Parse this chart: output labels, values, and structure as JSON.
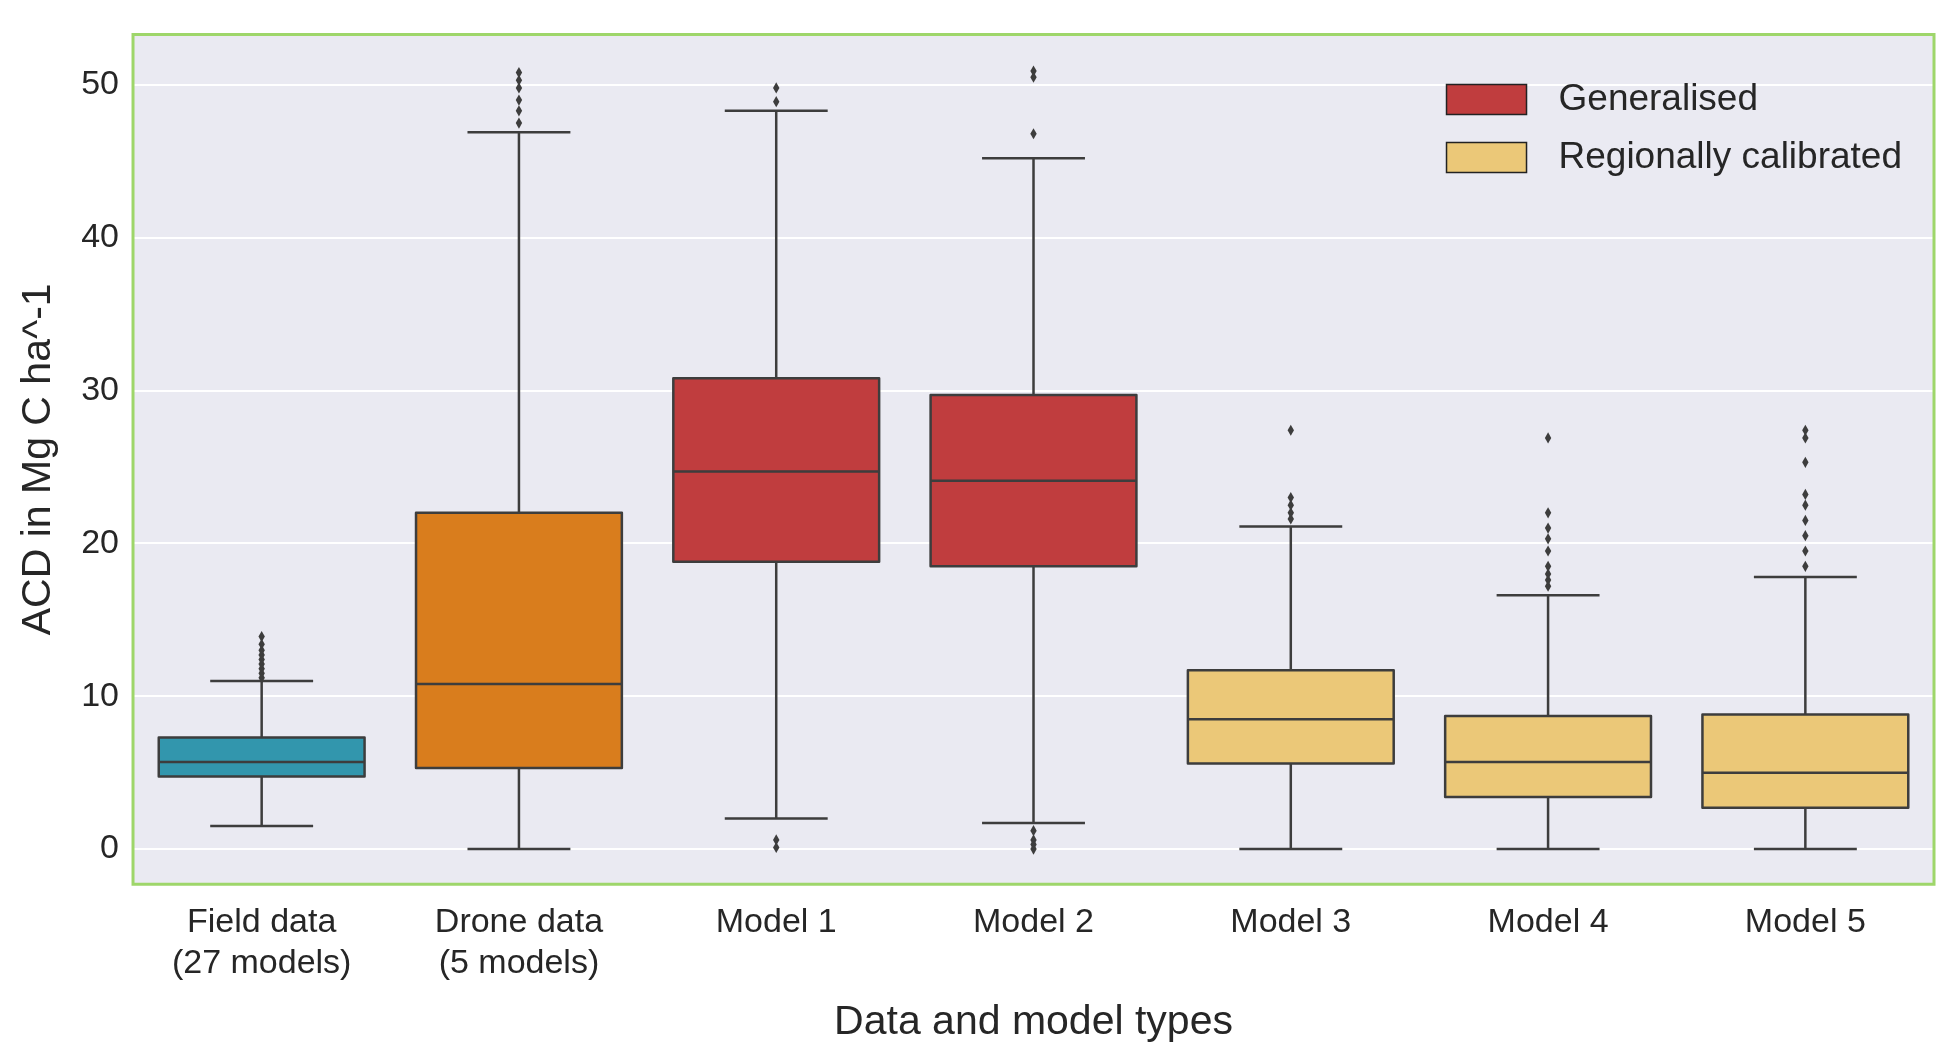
{
  "chart_data": {
    "type": "box",
    "xlabel": "Data and model types",
    "ylabel": "ACD in Mg C ha^-1",
    "categories": [
      "Field data\n(27 models)",
      "Drone data\n(5 models)",
      "Model 1",
      "Model 2",
      "Model 3",
      "Model 4",
      "Model 5"
    ],
    "ylim": [
      -2.3,
      53.3
    ],
    "yticks": [
      0,
      10,
      20,
      30,
      40,
      50
    ],
    "grid": "y",
    "legend": "top right",
    "marker": "diamond",
    "series": [
      {
        "color": "#3296ad",
        "boxes": [
          {
            "low": 1.5,
            "q1": 4.75,
            "median": 5.7,
            "q3": 7.3,
            "high": 11.0,
            "outliers": [
              11.2,
              11.5,
              11.8,
              12.1,
              12.4,
              12.7,
              13.0,
              13.4,
              13.9
            ]
          },
          null,
          null,
          null,
          null,
          null,
          null
        ]
      },
      {
        "color": "#d97d1d",
        "boxes": [
          null,
          {
            "low": 0,
            "q1": 5.3,
            "median": 10.8,
            "q3": 22.0,
            "high": 46.9,
            "outliers": [
              47.5,
              48.3,
              49.0,
              49.8,
              50.3,
              50.8
            ]
          },
          null,
          null,
          null,
          null,
          null
        ]
      },
      {
        "name": "Generalised",
        "color": "#c03d3e",
        "boxes": [
          null,
          null,
          {
            "low": 2.0,
            "q1": 18.8,
            "median": 24.7,
            "q3": 30.8,
            "high": 48.3,
            "outliers": [
              48.9,
              49.8,
              0.6,
              0.1
            ]
          },
          {
            "low": 1.7,
            "q1": 18.5,
            "median": 24.1,
            "q3": 29.7,
            "high": 45.2,
            "outliers": [
              50.9,
              50.5,
              46.8,
              1.2,
              0.6,
              0.3,
              0.0
            ]
          },
          null,
          null,
          null
        ]
      },
      {
        "name": "Regionally calibrated",
        "color": "#ebc878",
        "boxes": [
          null,
          null,
          null,
          null,
          {
            "low": 0,
            "q1": 5.6,
            "median": 8.5,
            "q3": 11.7,
            "high": 21.1,
            "outliers": [
              21.6,
              22.0,
              22.5,
              23.0,
              27.4
            ]
          },
          {
            "low": 0,
            "q1": 3.4,
            "median": 5.7,
            "q3": 8.7,
            "high": 16.6,
            "outliers": [
              17.2,
              17.6,
              18.0,
              18.5,
              19.5,
              20.3,
              21.0,
              22.0,
              26.9
            ]
          },
          {
            "low": 0,
            "q1": 2.7,
            "median": 5.0,
            "q3": 8.8,
            "high": 17.8,
            "outliers": [
              18.5,
              19.5,
              20.5,
              21.5,
              22.5,
              23.2,
              25.3,
              26.9,
              27.4
            ]
          }
        ]
      }
    ]
  }
}
